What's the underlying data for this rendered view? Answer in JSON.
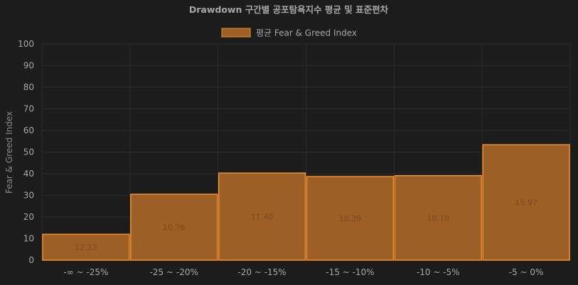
{
  "chart_data": {
    "type": "bar",
    "title": "Drawdown 구간별 공포탐욕지수 평균 및 표준편차",
    "ylabel": "Fear & Greed Index",
    "xlabel": "",
    "ylim": [
      0,
      100
    ],
    "y_ticks": [
      "0",
      "10",
      "20",
      "30",
      "40",
      "50",
      "60",
      "70",
      "80",
      "90",
      "100"
    ],
    "y_tick_values": [
      0,
      10,
      20,
      30,
      40,
      50,
      60,
      70,
      80,
      90,
      100
    ],
    "categories": [
      "-∞ ~ -25%",
      "-25 ~ -20%",
      "-20 ~ -15%",
      "-15 ~ -10%",
      "-10 ~ -5%",
      "-5 ~ 0%"
    ],
    "series": [
      {
        "name": "평균 Fear & Greed Index",
        "values": [
          12,
          30.5,
          40.3,
          38.7,
          39.1,
          53.4
        ],
        "std_labels": [
          "12.13",
          "10.76",
          "11.40",
          "10.39",
          "10.10",
          "15.97"
        ]
      }
    ],
    "legend_position": "top",
    "grid": true,
    "colors": {
      "bar_fill": "#9c5f26",
      "bar_stroke": "#f0902a",
      "background": "#1c1c1c",
      "text": "#a8a8a8",
      "grid": "#2c2c2c"
    }
  }
}
